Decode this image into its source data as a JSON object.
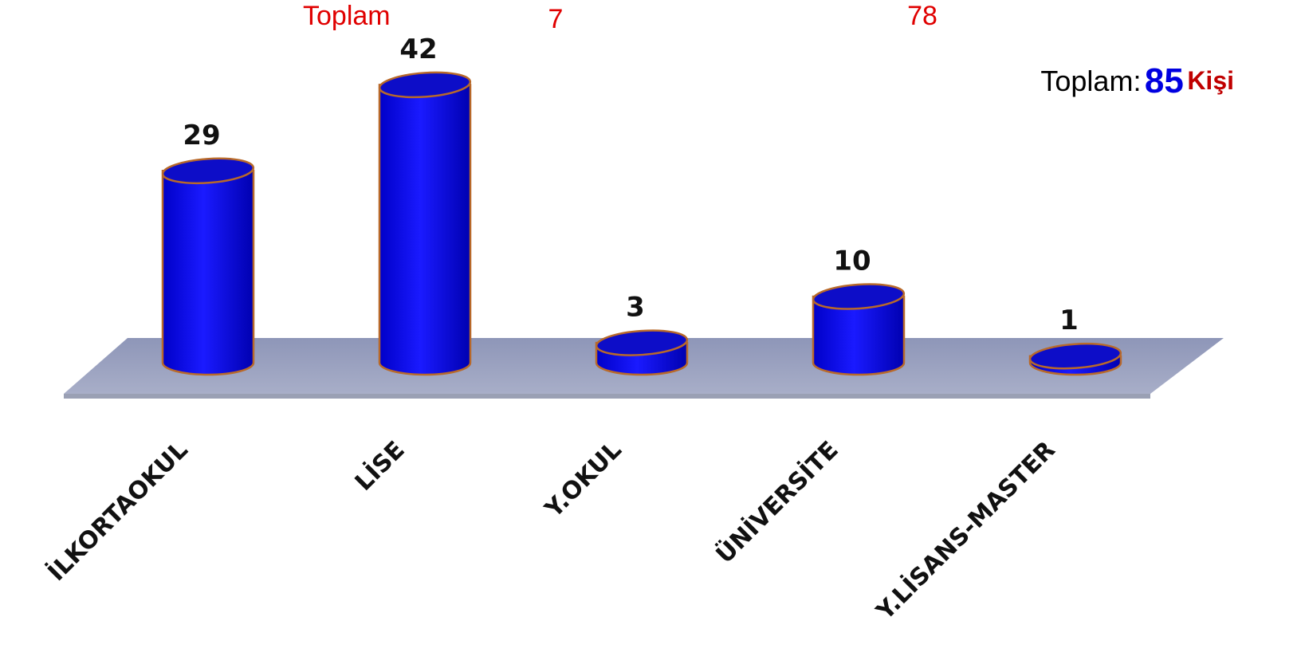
{
  "chart_data": {
    "type": "bar3d",
    "categories": [
      "İLKORTAOKUL",
      "LİSE",
      "Y.OKUL",
      "ÜNİVERSİTE",
      "Y.LİSANS-MASTER"
    ],
    "values": [
      29,
      42,
      3,
      10,
      1
    ],
    "color": "#0a0af0",
    "annotations": [
      "Toplam",
      "7",
      "78"
    ],
    "total": {
      "label": "Toplam:",
      "value": 85,
      "unit": "Kişi"
    }
  }
}
